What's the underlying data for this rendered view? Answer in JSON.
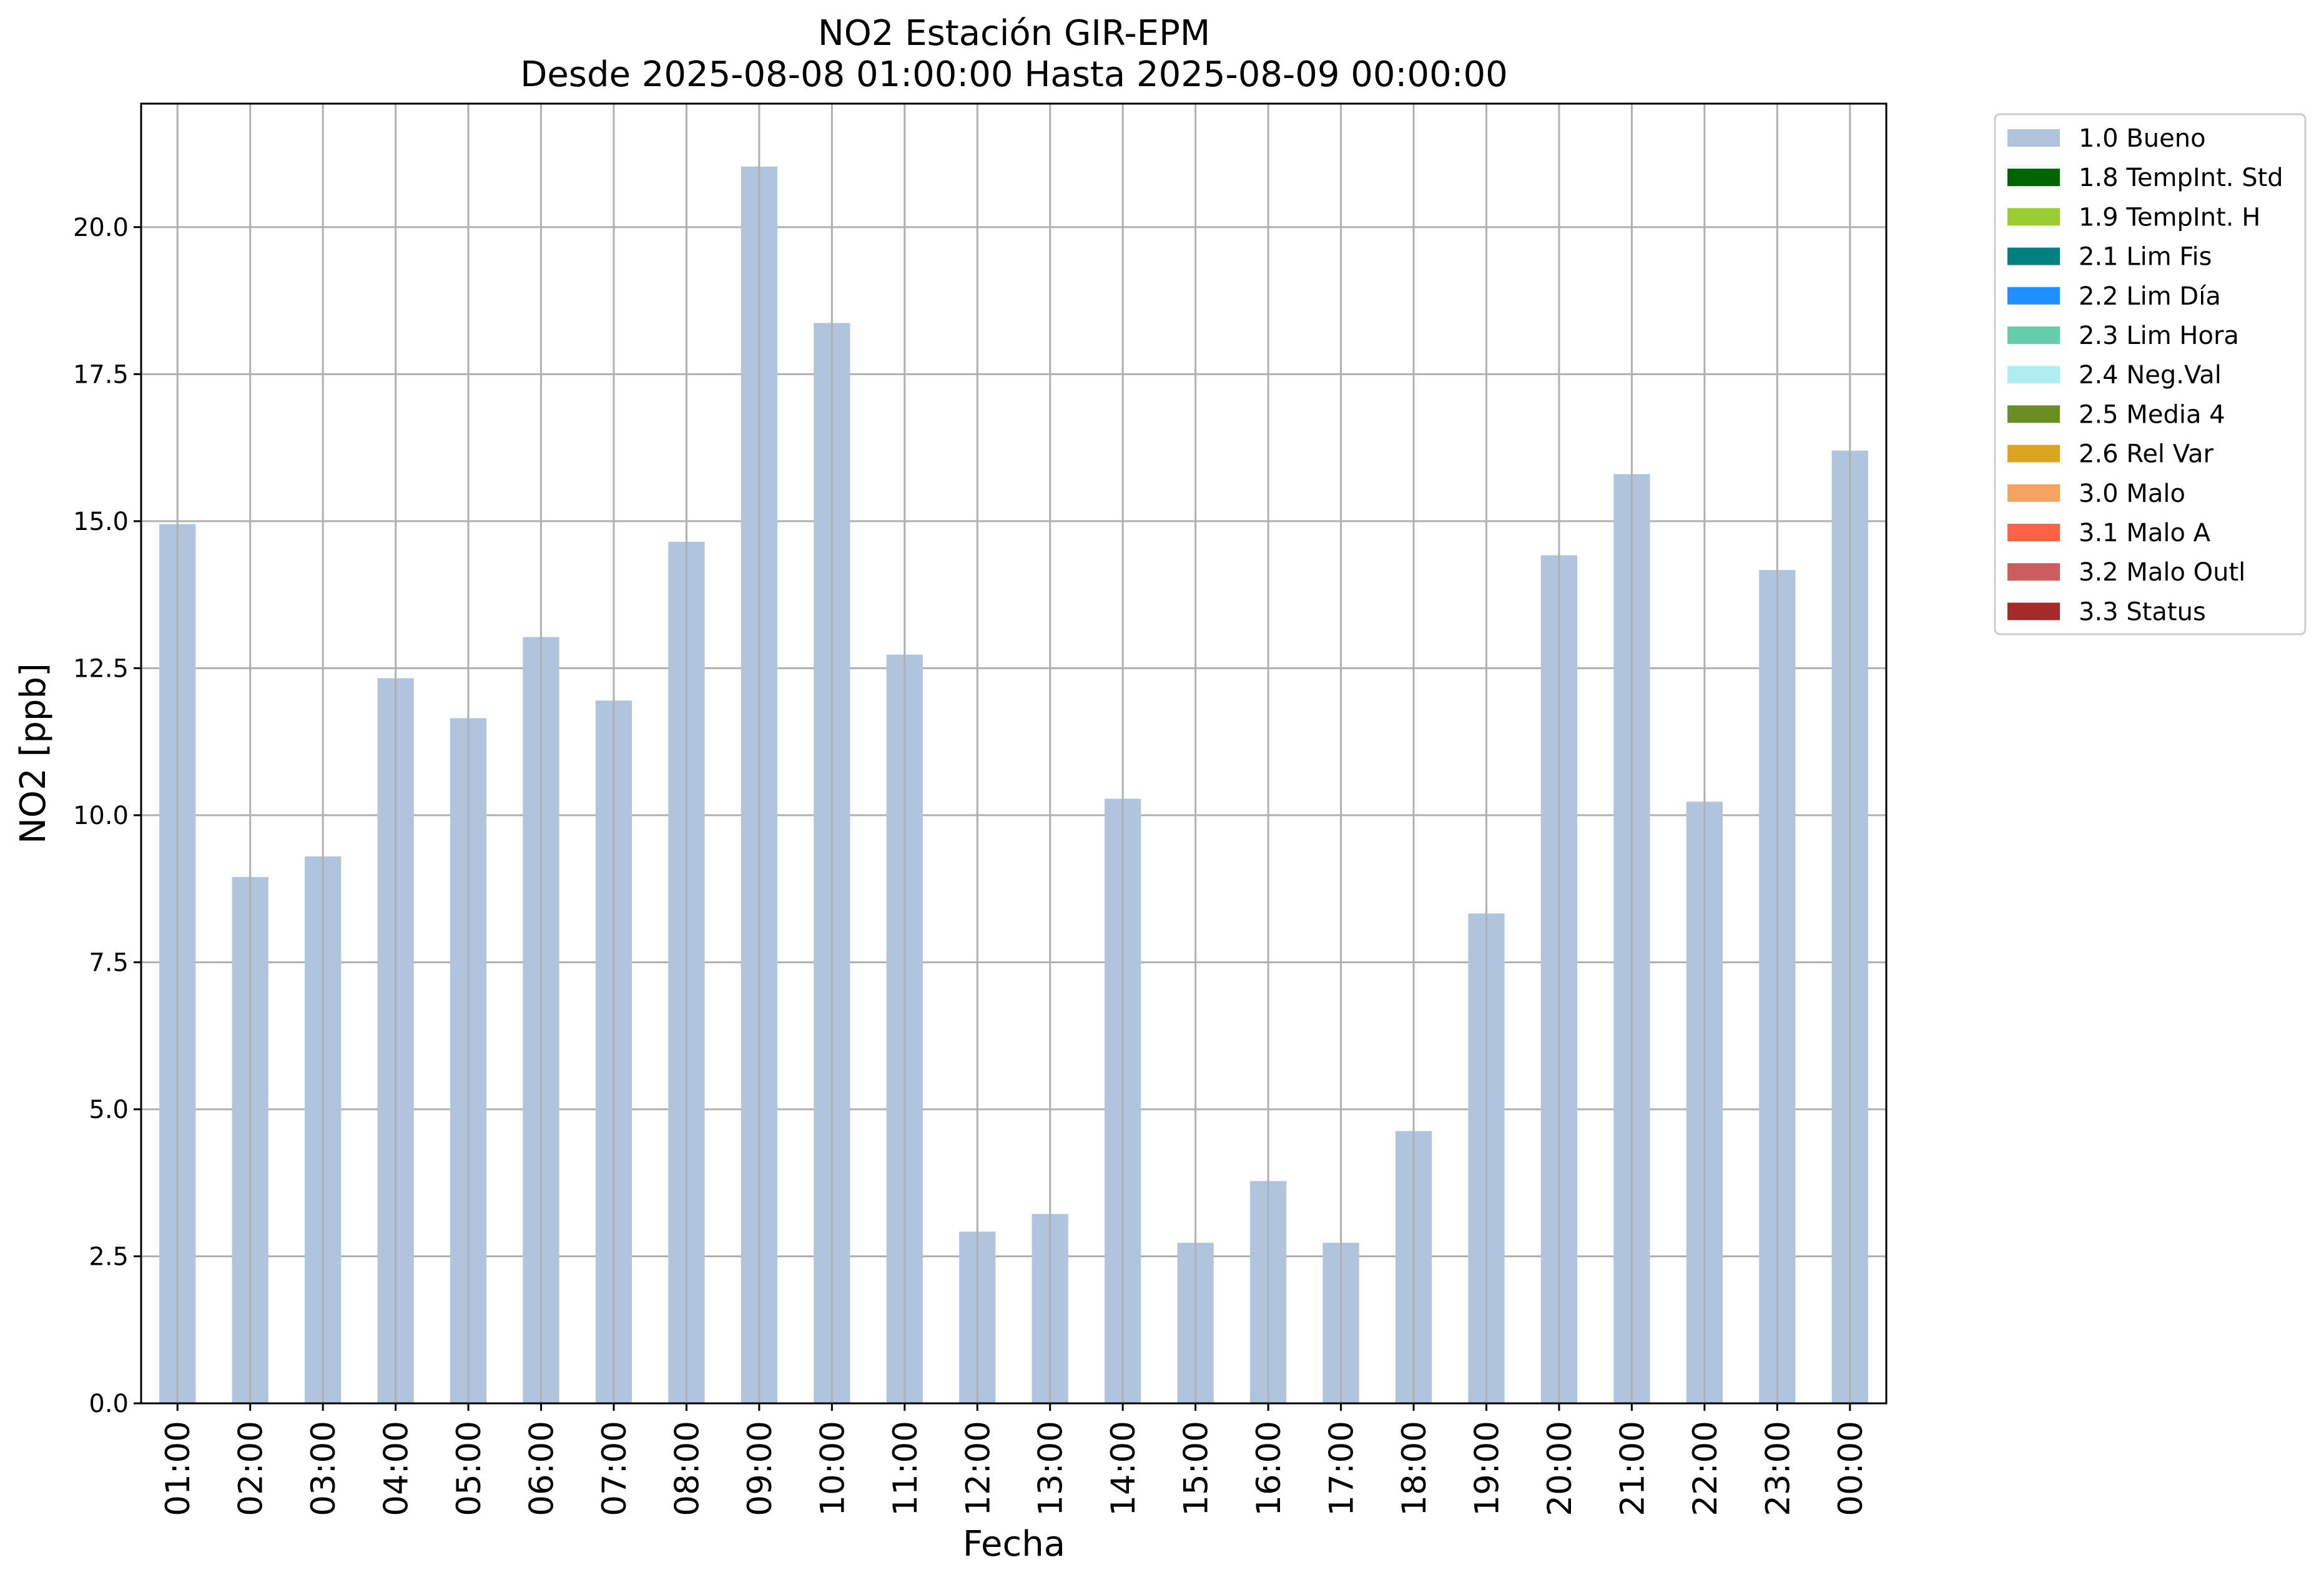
{
  "chart_data": {
    "type": "bar",
    "title": "NO2 Estación GIR-EPM",
    "subtitle": "Desde 2025-08-08 01:00:00 Hasta 2025-08-09 00:00:00",
    "xlabel": "Fecha",
    "ylabel": "NO2 [ppb]",
    "ylim": [
      0,
      22.1
    ],
    "yticks": [
      "0.0",
      "2.5",
      "5.0",
      "7.5",
      "10.0",
      "12.5",
      "15.0",
      "17.5",
      "20.0"
    ],
    "grid": true,
    "legend_position": "outside-upper-right",
    "categories": [
      "01:00",
      "02:00",
      "03:00",
      "04:00",
      "05:00",
      "06:00",
      "07:00",
      "08:00",
      "09:00",
      "10:00",
      "11:00",
      "12:00",
      "13:00",
      "14:00",
      "15:00",
      "16:00",
      "17:00",
      "18:00",
      "19:00",
      "20:00",
      "21:00",
      "22:00",
      "23:00",
      "00:00"
    ],
    "series": [
      {
        "name": "1.0 Bueno",
        "color": "#b0c4de",
        "values": [
          14.95,
          8.95,
          9.3,
          12.33,
          11.65,
          13.03,
          11.95,
          14.65,
          21.03,
          18.37,
          12.73,
          2.92,
          3.22,
          10.28,
          2.73,
          3.78,
          2.73,
          4.63,
          8.33,
          14.42,
          15.8,
          10.23,
          14.17,
          16.2
        ]
      }
    ],
    "legend": [
      {
        "label": "1.0 Bueno",
        "color": "#b0c4de"
      },
      {
        "label": "1.8 TempInt. Std",
        "color": "#006400"
      },
      {
        "label": "1.9 TempInt. H",
        "color": "#9acd32"
      },
      {
        "label": "2.1 Lim Fis",
        "color": "#008080"
      },
      {
        "label": "2.2 Lim Día",
        "color": "#1e90ff"
      },
      {
        "label": "2.3 Lim Hora",
        "color": "#66cdaa"
      },
      {
        "label": "2.4 Neg.Val",
        "color": "#afeeee"
      },
      {
        "label": "2.5 Media 4",
        "color": "#6b8e23"
      },
      {
        "label": "2.6 Rel Var",
        "color": "#daa520"
      },
      {
        "label": "3.0 Malo",
        "color": "#f4a460"
      },
      {
        "label": "3.1 Malo A",
        "color": "#ff6347"
      },
      {
        "label": "3.2 Malo Outl",
        "color": "#cd5c5c"
      },
      {
        "label": "3.3 Status",
        "color": "#a52a2a"
      }
    ]
  }
}
